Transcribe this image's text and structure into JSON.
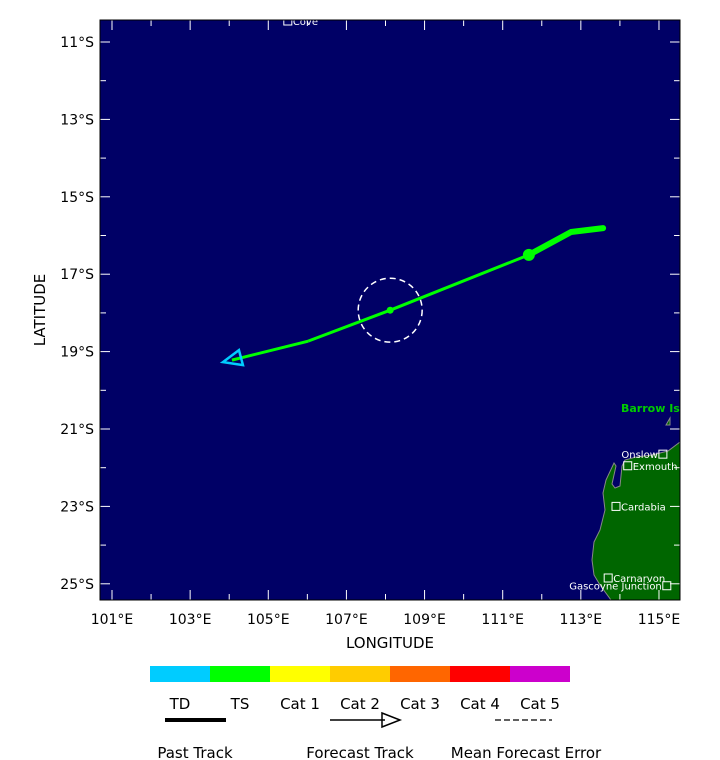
{
  "map": {
    "ocean_color": "#000066",
    "land_color": "#006600",
    "x_axis_label": "LONGITUDE",
    "y_axis_label": "LATITUDE",
    "lon_labels": [
      "101°E",
      "103°E",
      "105°E",
      "107°E",
      "109°E",
      "111°E",
      "113°E",
      "115°E"
    ],
    "lat_labels": [
      "11°S",
      "13°S",
      "15°S",
      "17°S",
      "19°S",
      "21°S",
      "23°S",
      "25°S"
    ],
    "places": [
      {
        "name": "Cove",
        "lon": 105.5,
        "lat": 10.45,
        "side": "right"
      },
      {
        "name": "Onslow",
        "lon": 115.1,
        "lat": 21.65,
        "side": "left"
      },
      {
        "name": "Exmouth",
        "lon": 114.2,
        "lat": 21.95,
        "side": "right"
      },
      {
        "name": "Cardabia",
        "lon": 113.9,
        "lat": 23.0,
        "side": "right"
      },
      {
        "name": "Carnarvon",
        "lon": 113.7,
        "lat": 24.85,
        "side": "right"
      },
      {
        "name": "Gascoyne Junction",
        "lon": 115.2,
        "lat": 25.05,
        "side": "left"
      }
    ],
    "island_label": "Barrow Is",
    "island_label_color": "#00cc00",
    "past_track": [
      {
        "lon": 113.57,
        "lat": 15.81
      },
      {
        "lon": 112.75,
        "lat": 15.91
      },
      {
        "lon": 111.67,
        "lat": 16.5
      }
    ],
    "forecast_track": [
      {
        "lon": 111.67,
        "lat": 16.5,
        "category": "TS"
      },
      {
        "lon": 108.12,
        "lat": 17.93,
        "category": "TS"
      },
      {
        "lon": 106.02,
        "lat": 18.73,
        "category": "TS"
      },
      {
        "lon": 104.07,
        "lat": 19.22,
        "category": "TD"
      }
    ],
    "error_circle": {
      "lon": 108.12,
      "lat": 17.93,
      "radius_deg": 0.82
    }
  },
  "legend": {
    "categories": [
      {
        "label": "TD",
        "color": "#00ccff"
      },
      {
        "label": "TS",
        "color": "#00ff00"
      },
      {
        "label": "Cat 1",
        "color": "#ffff00"
      },
      {
        "label": "Cat 2",
        "color": "#ffcc00"
      },
      {
        "label": "Cat 3",
        "color": "#ff6600"
      },
      {
        "label": "Cat 4",
        "color": "#ff0000"
      },
      {
        "label": "Cat 5",
        "color": "#cc00cc"
      }
    ],
    "past_track": "Past Track",
    "forecast_track": "Forecast Track",
    "mean_error": "Mean Forecast Error"
  }
}
